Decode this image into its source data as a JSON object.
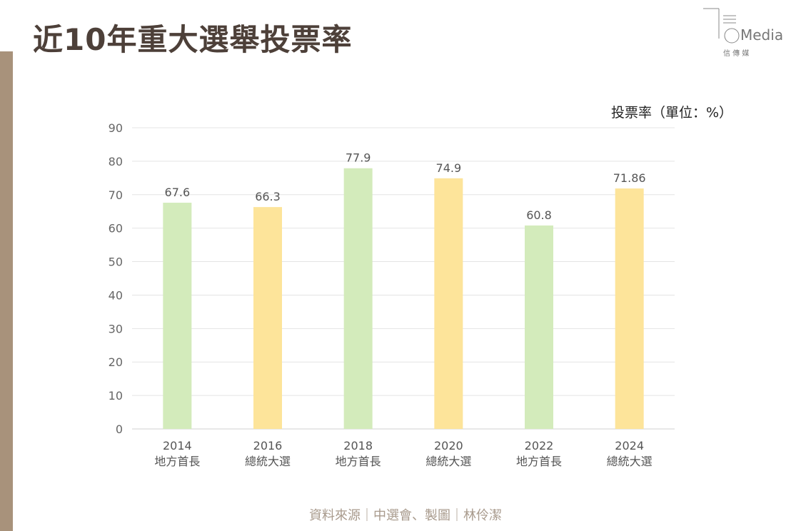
{
  "header": {
    "title": "近10年重大選舉投票率",
    "logo_text": "Media",
    "logo_sub": "信 傳 媒"
  },
  "chart_data": {
    "type": "bar",
    "title": "近10年重大選舉投票率",
    "ylabel": "投票率（單位：%）",
    "categories": [
      [
        "2014",
        "地方首長"
      ],
      [
        "2016",
        "總統大選"
      ],
      [
        "2018",
        "地方首長"
      ],
      [
        "2020",
        "總統大選"
      ],
      [
        "2022",
        "地方首長"
      ],
      [
        "2024",
        "總統大選"
      ]
    ],
    "values": [
      67.6,
      66.3,
      77.9,
      74.9,
      60.8,
      71.86
    ],
    "labels": [
      "67.6",
      "66.3",
      "77.9",
      "74.9",
      "60.8",
      "71.86"
    ],
    "colors": [
      "#d3ebbb",
      "#fde49a",
      "#d3ebbb",
      "#fde49a",
      "#d3ebbb",
      "#fde49a"
    ],
    "ylim": [
      0,
      90
    ],
    "yticks": [
      0,
      10,
      20,
      30,
      40,
      50,
      60,
      70,
      80,
      90
    ],
    "grid": true
  },
  "footer": {
    "source": "資料來源｜中選會、製圖｜林伶潔"
  }
}
